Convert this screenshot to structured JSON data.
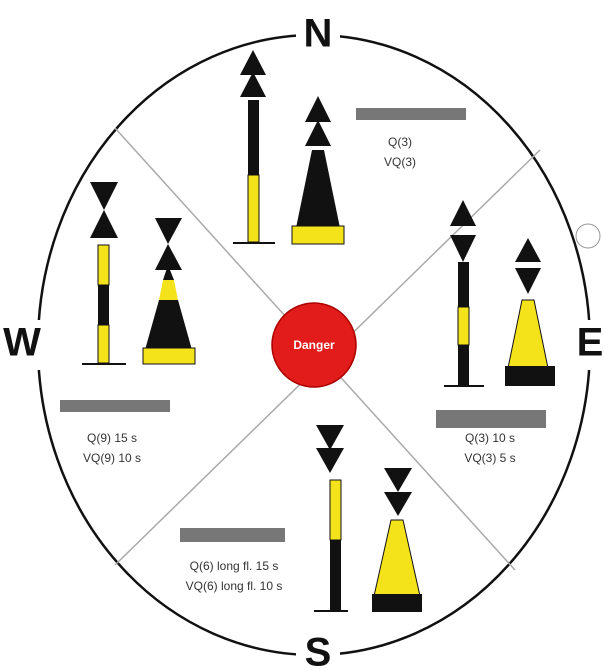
{
  "compass": {
    "north": "N",
    "east": "E",
    "south": "S",
    "west": "W"
  },
  "center": "Danger",
  "sectors": {
    "north": {
      "lines": [
        "Q(3)",
        "VQ(3)"
      ]
    },
    "west": {
      "lines": [
        "Q(9) 15 s",
        "VQ(9) 10 s"
      ]
    },
    "east": {
      "lines": [
        "Q(3) 10 s",
        "VQ(3) 5 s"
      ]
    },
    "south": {
      "lines": [
        "Q(6) long fl. 15 s",
        "VQ(6) long fl. 10 s"
      ]
    }
  }
}
